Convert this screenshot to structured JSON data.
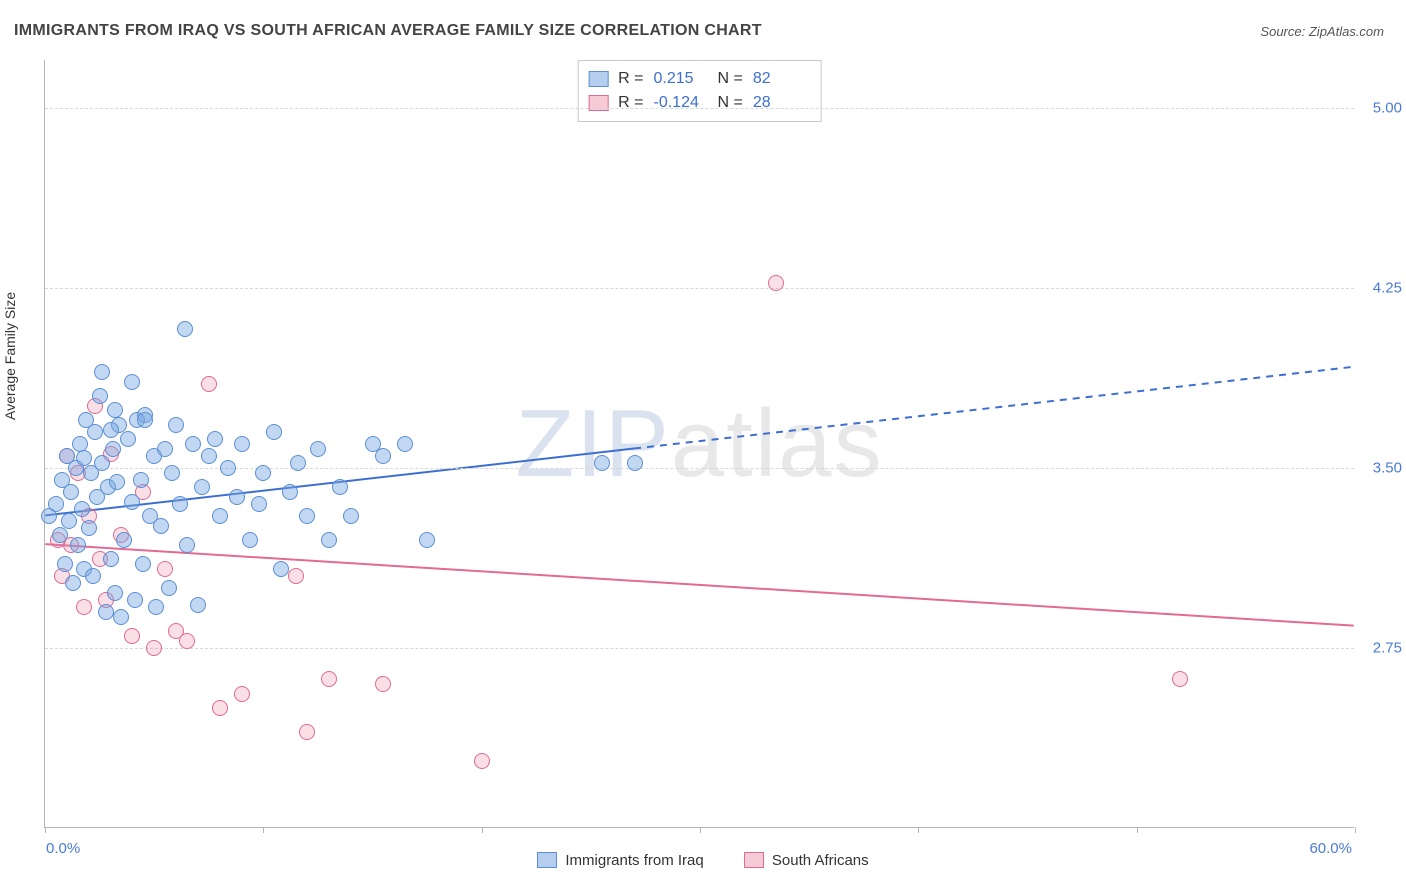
{
  "title": "IMMIGRANTS FROM IRAQ VS SOUTH AFRICAN AVERAGE FAMILY SIZE CORRELATION CHART",
  "source_label": "Source:",
  "source_name": "ZipAtlas.com",
  "y_axis_title": "Average Family Size",
  "chart": {
    "type": "scatter",
    "xlim": [
      0,
      60
    ],
    "ylim": [
      2.0,
      5.2
    ],
    "x_unit": "%",
    "xtick_left": "0.0%",
    "xtick_right": "60.0%",
    "yticks": [
      2.75,
      3.5,
      4.25,
      5.0
    ],
    "ytick_labels": [
      "2.75",
      "3.50",
      "4.25",
      "5.00"
    ],
    "bottom_tick_positions": [
      0,
      10,
      20,
      30,
      40,
      50,
      60
    ],
    "grid_color": "#d7d7d7",
    "axis_color": "#b5b5b5",
    "background_color": "#ffffff",
    "tick_label_color": "#4b7bd6",
    "tick_fontsize": 15,
    "title_fontsize": 16,
    "series": {
      "iraq": {
        "label": "Immigrants from Iraq",
        "marker_fill": "rgba(120,166,224,0.45)",
        "marker_stroke": "#5b8fd6",
        "marker_radius_px": 8,
        "trend": {
          "x1": 0,
          "y1": 3.3,
          "x2": 60,
          "y2": 3.92,
          "solid_until_x": 27,
          "color": "#3d6fd1",
          "width": 2
        },
        "R": "0.215",
        "N": "82",
        "points": [
          [
            0.2,
            3.3
          ],
          [
            0.5,
            3.35
          ],
          [
            0.7,
            3.22
          ],
          [
            0.8,
            3.45
          ],
          [
            0.9,
            3.1
          ],
          [
            1.0,
            3.55
          ],
          [
            1.1,
            3.28
          ],
          [
            1.2,
            3.4
          ],
          [
            1.3,
            3.02
          ],
          [
            1.4,
            3.5
          ],
          [
            1.5,
            3.18
          ],
          [
            1.6,
            3.6
          ],
          [
            1.7,
            3.33
          ],
          [
            1.8,
            3.08
          ],
          [
            1.9,
            3.7
          ],
          [
            2.0,
            3.25
          ],
          [
            2.1,
            3.48
          ],
          [
            2.2,
            3.05
          ],
          [
            2.3,
            3.65
          ],
          [
            2.4,
            3.38
          ],
          [
            2.5,
            3.8
          ],
          [
            2.6,
            3.52
          ],
          [
            2.8,
            2.9
          ],
          [
            2.9,
            3.42
          ],
          [
            3.0,
            3.12
          ],
          [
            3.1,
            3.58
          ],
          [
            3.2,
            2.98
          ],
          [
            3.3,
            3.44
          ],
          [
            3.4,
            3.68
          ],
          [
            3.5,
            2.88
          ],
          [
            3.6,
            3.2
          ],
          [
            3.8,
            3.62
          ],
          [
            4.0,
            3.36
          ],
          [
            4.1,
            2.95
          ],
          [
            4.2,
            3.7
          ],
          [
            4.4,
            3.45
          ],
          [
            4.5,
            3.1
          ],
          [
            4.6,
            3.72
          ],
          [
            4.8,
            3.3
          ],
          [
            5.0,
            3.55
          ],
          [
            5.1,
            2.92
          ],
          [
            5.3,
            3.26
          ],
          [
            5.5,
            3.58
          ],
          [
            5.7,
            3.0
          ],
          [
            5.8,
            3.48
          ],
          [
            6.0,
            3.68
          ],
          [
            6.2,
            3.35
          ],
          [
            6.4,
            4.08
          ],
          [
            6.5,
            3.18
          ],
          [
            6.8,
            3.6
          ],
          [
            7.0,
            2.93
          ],
          [
            7.2,
            3.42
          ],
          [
            7.5,
            3.55
          ],
          [
            7.8,
            3.62
          ],
          [
            8.0,
            3.3
          ],
          [
            8.4,
            3.5
          ],
          [
            8.8,
            3.38
          ],
          [
            9.0,
            3.6
          ],
          [
            9.4,
            3.2
          ],
          [
            9.8,
            3.35
          ],
          [
            10.0,
            3.48
          ],
          [
            10.5,
            3.65
          ],
          [
            10.8,
            3.08
          ],
          [
            11.2,
            3.4
          ],
          [
            11.6,
            3.52
          ],
          [
            12.0,
            3.3
          ],
          [
            12.5,
            3.58
          ],
          [
            13.0,
            3.2
          ],
          [
            13.5,
            3.42
          ],
          [
            14.0,
            3.3
          ],
          [
            15.0,
            3.6
          ],
          [
            15.5,
            3.55
          ],
          [
            16.5,
            3.6
          ],
          [
            17.5,
            3.2
          ],
          [
            25.5,
            3.52
          ],
          [
            27.0,
            3.52
          ],
          [
            2.6,
            3.9
          ],
          [
            3.2,
            3.74
          ],
          [
            4.0,
            3.86
          ],
          [
            4.6,
            3.7
          ],
          [
            3.0,
            3.66
          ],
          [
            1.8,
            3.54
          ]
        ]
      },
      "sa": {
        "label": "South Africans",
        "marker_fill": "rgba(236,140,168,0.28)",
        "marker_stroke": "#e26a93",
        "marker_radius_px": 8,
        "trend": {
          "x1": 0,
          "y1": 3.18,
          "x2": 60,
          "y2": 2.84,
          "color": "#e26a93",
          "width": 2
        },
        "R": "-0.124",
        "N": "28",
        "points": [
          [
            0.6,
            3.2
          ],
          [
            0.8,
            3.05
          ],
          [
            1.0,
            3.55
          ],
          [
            1.2,
            3.18
          ],
          [
            1.5,
            3.48
          ],
          [
            1.8,
            2.92
          ],
          [
            2.0,
            3.3
          ],
          [
            2.3,
            3.76
          ],
          [
            2.5,
            3.12
          ],
          [
            2.8,
            2.95
          ],
          [
            3.0,
            3.56
          ],
          [
            3.5,
            3.22
          ],
          [
            4.0,
            2.8
          ],
          [
            4.5,
            3.4
          ],
          [
            5.0,
            2.75
          ],
          [
            5.5,
            3.08
          ],
          [
            6.0,
            2.82
          ],
          [
            6.5,
            2.78
          ],
          [
            7.5,
            3.85
          ],
          [
            8.0,
            2.5
          ],
          [
            9.0,
            2.56
          ],
          [
            11.5,
            3.05
          ],
          [
            12.0,
            2.4
          ],
          [
            13.0,
            2.62
          ],
          [
            15.5,
            2.6
          ],
          [
            20.0,
            2.28
          ],
          [
            33.5,
            4.27
          ],
          [
            52.0,
            2.62
          ]
        ]
      }
    }
  },
  "rn_legend": {
    "rows": [
      {
        "swatch": "blue",
        "r_key": "R =",
        "r_val": "0.215",
        "n_key": "N =",
        "n_val": "82"
      },
      {
        "swatch": "pink",
        "r_key": "R =",
        "r_val": "-0.124",
        "n_key": "N =",
        "n_val": "28"
      }
    ]
  },
  "bottom_legend": {
    "items": [
      {
        "swatch": "blue",
        "label": "Immigrants from Iraq"
      },
      {
        "swatch": "pink",
        "label": "South Africans"
      }
    ]
  },
  "watermark": {
    "zip": "ZIP",
    "atlas": "atlas"
  }
}
